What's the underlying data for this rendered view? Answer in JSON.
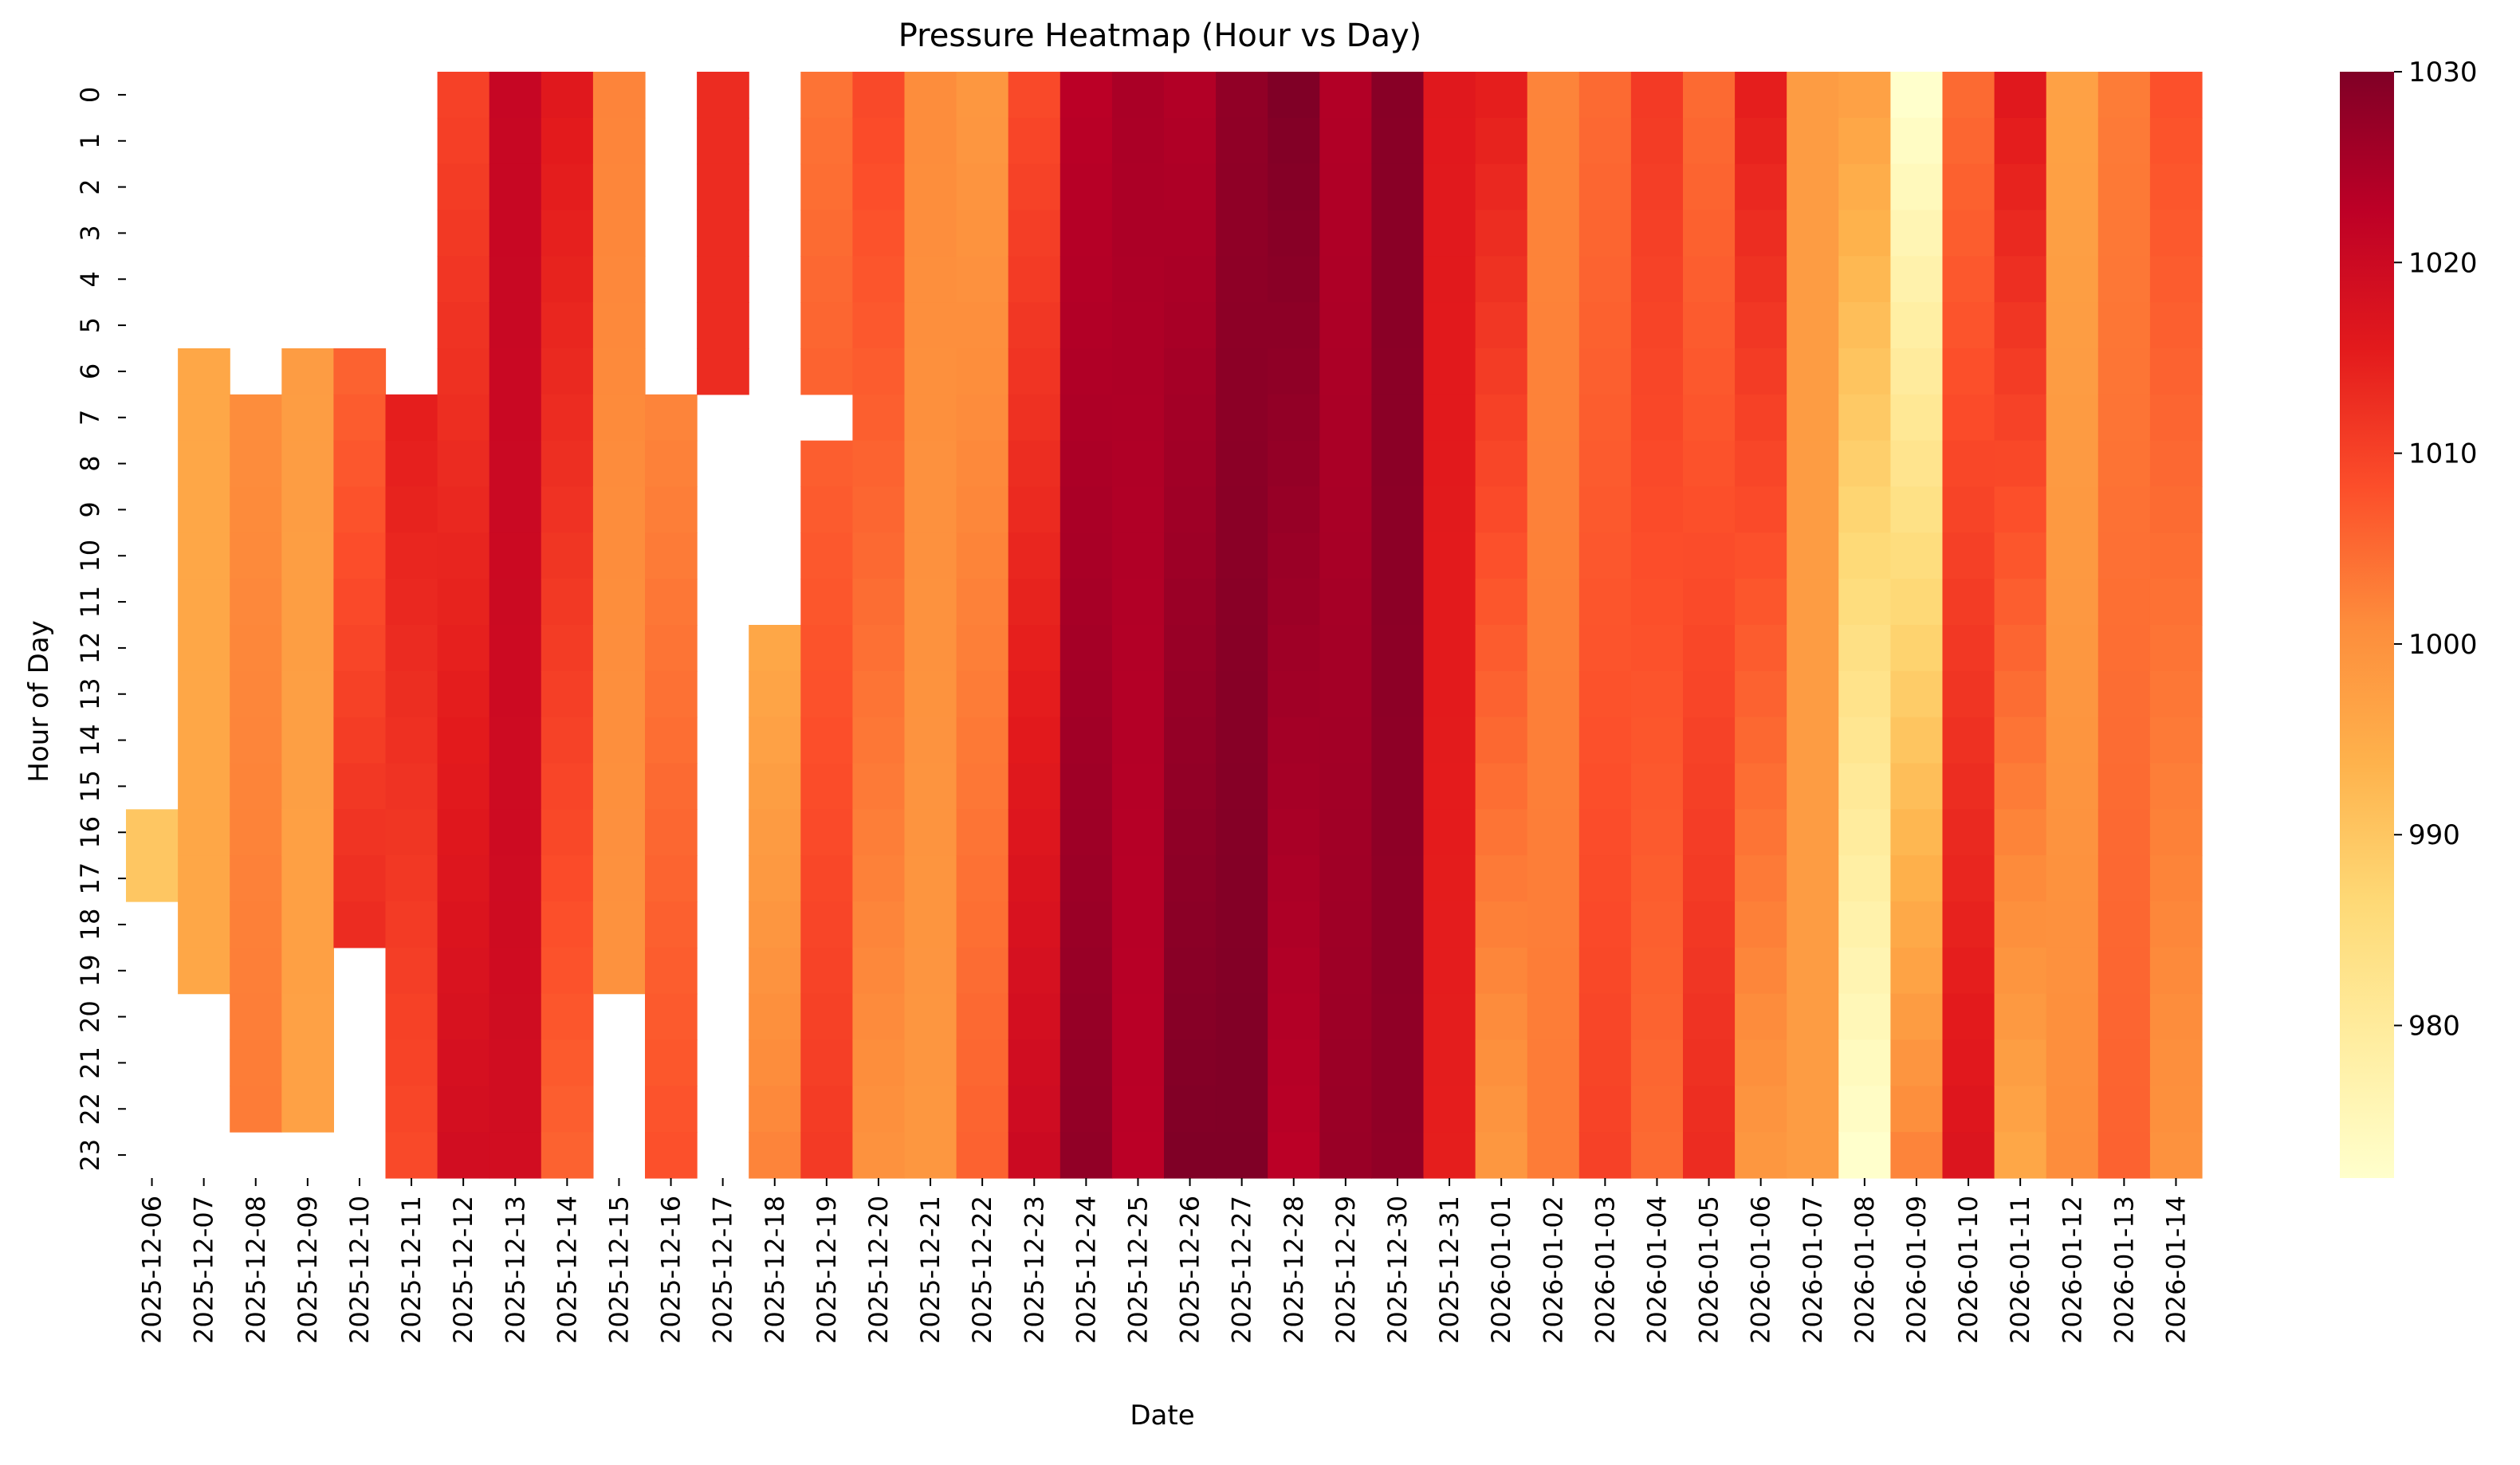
{
  "chart_data": {
    "type": "heatmap",
    "title": "Pressure Heatmap (Hour vs Day)",
    "xlabel": "Date",
    "ylabel": "Hour of Day",
    "colormap": "YlOrRd",
    "colors": [
      "#ffffcc",
      "#ffeda0",
      "#fed976",
      "#feb24c",
      "#fd8d3c",
      "#fc4e2a",
      "#e31a1c",
      "#bd0026",
      "#800026"
    ],
    "missing_color": "#ffffff",
    "colorbar": {
      "min": 972,
      "max": 1030,
      "ticks": [
        980,
        990,
        1000,
        1010,
        1020,
        1030
      ]
    },
    "x": [
      "2025-12-06",
      "2025-12-07",
      "2025-12-08",
      "2025-12-09",
      "2025-12-10",
      "2025-12-11",
      "2025-12-12",
      "2025-12-13",
      "2025-12-14",
      "2025-12-15",
      "2025-12-16",
      "2025-12-17",
      "2025-12-18",
      "2025-12-19",
      "2025-12-20",
      "2025-12-21",
      "2025-12-22",
      "2025-12-23",
      "2025-12-24",
      "2025-12-25",
      "2025-12-26",
      "2025-12-27",
      "2025-12-28",
      "2025-12-29",
      "2025-12-30",
      "2025-12-31",
      "2026-01-01",
      "2026-01-02",
      "2026-01-03",
      "2026-01-04",
      "2026-01-05",
      "2026-01-06",
      "2026-01-07",
      "2026-01-08",
      "2026-01-09",
      "2026-01-10",
      "2026-01-11",
      "2026-01-12",
      "2026-01-13",
      "2026-01-14"
    ],
    "y": [
      "0",
      "1",
      "2",
      "3",
      "4",
      "5",
      "6",
      "7",
      "8",
      "9",
      "10",
      "11",
      "12",
      "13",
      "14",
      "15",
      "16",
      "17",
      "18",
      "19",
      "20",
      "21",
      "22",
      "23"
    ],
    "coverage_hours": [
      [
        16,
        17
      ],
      [
        6,
        19
      ],
      [
        7,
        22
      ],
      [
        6,
        22
      ],
      [
        6,
        18
      ],
      [
        7,
        23
      ],
      [
        0,
        23
      ],
      [
        0,
        23
      ],
      [
        0,
        23
      ],
      [
        0,
        19
      ],
      [
        7,
        23
      ],
      [
        0,
        6
      ],
      [
        12,
        23
      ],
      [
        0,
        23
      ],
      [
        0,
        23
      ],
      [
        0,
        23
      ],
      [
        0,
        23
      ],
      [
        0,
        23
      ],
      [
        0,
        23
      ],
      [
        0,
        23
      ],
      [
        0,
        23
      ],
      [
        0,
        23
      ],
      [
        0,
        23
      ],
      [
        0,
        23
      ],
      [
        0,
        23
      ],
      [
        0,
        23
      ],
      [
        0,
        23
      ],
      [
        0,
        23
      ],
      [
        0,
        23
      ],
      [
        0,
        23
      ],
      [
        0,
        23
      ],
      [
        0,
        23
      ],
      [
        0,
        23
      ],
      [
        0,
        23
      ],
      [
        0,
        23
      ],
      [
        0,
        23
      ],
      [
        0,
        23
      ],
      [
        0,
        23
      ],
      [
        0,
        23
      ],
      [
        0,
        23
      ]
    ],
    "missing_cells": [
      [
        12,
        6
      ],
      [
        13,
        7
      ]
    ],
    "daily_start_end": [
      [
        990,
        990
      ],
      [
        996,
        996
      ],
      [
        1001,
        1003
      ],
      [
        998,
        997
      ],
      [
        1006,
        1013
      ],
      [
        1015,
        1009
      ],
      [
        1010,
        1019
      ],
      [
        1021,
        1019
      ],
      [
        1016,
        1006
      ],
      [
        1002,
        1000
      ],
      [
        1002,
        1008
      ],
      [
        1013,
        1013
      ],
      [
        996,
        1002
      ],
      [
        1004,
        1011
      ],
      [
        1009,
        1000
      ],
      [
        1001,
        999
      ],
      [
        999,
        1006
      ],
      [
        1009,
        1020
      ],
      [
        1023,
        1028
      ],
      [
        1025,
        1023
      ],
      [
        1024,
        1030
      ],
      [
        1028,
        1030
      ],
      [
        1030,
        1023
      ],
      [
        1024,
        1027
      ],
      [
        1029,
        1028
      ],
      [
        1016,
        1015
      ],
      [
        1015,
        999
      ],
      [
        1002,
        1003
      ],
      [
        1005,
        1010
      ],
      [
        1011,
        1005
      ],
      [
        1005,
        1013
      ],
      [
        1015,
        999
      ],
      [
        998,
        998
      ],
      [
        997,
        972
      ],
      [
        972,
        1002
      ],
      [
        1005,
        1017
      ],
      [
        1016,
        996
      ],
      [
        997,
        1001
      ],
      [
        1003,
        1006
      ],
      [
        1008,
        1000
      ]
    ]
  }
}
